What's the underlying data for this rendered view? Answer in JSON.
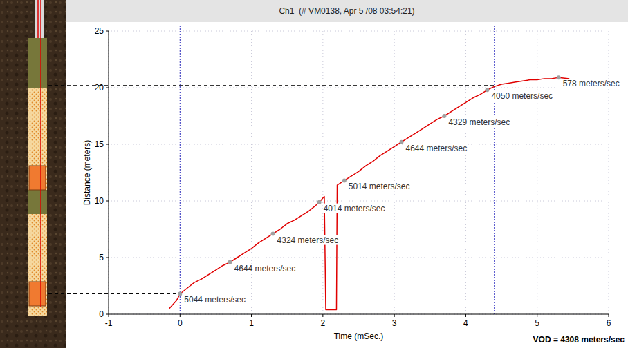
{
  "chart_data": {
    "type": "line",
    "title": "Ch1  (# VM0138, Apr 5 /08 03:54:21)",
    "x_label": "Time (mSec.)",
    "y_label": "Distance (meters)",
    "footer": "VOD = 4308 meters/sec",
    "color": "#e00000",
    "grid": true,
    "xlim": [
      -1,
      6
    ],
    "xticks": [
      -1,
      0,
      1,
      2,
      3,
      4,
      5,
      6
    ],
    "ylim": [
      0,
      25
    ],
    "yticks": [
      0,
      5,
      10,
      15,
      20,
      25
    ],
    "x": [
      -0.15,
      -0.05,
      0,
      0.1,
      0.2,
      0.3,
      0.4,
      0.5,
      0.6,
      0.7,
      0.8,
      0.9,
      1.0,
      1.1,
      1.2,
      1.3,
      1.4,
      1.5,
      1.6,
      1.7,
      1.8,
      1.9,
      1.95,
      2.02,
      2.04,
      2.19,
      2.2,
      2.3,
      2.4,
      2.5,
      2.6,
      2.7,
      2.8,
      2.9,
      3.0,
      3.1,
      3.2,
      3.3,
      3.4,
      3.5,
      3.6,
      3.7,
      3.8,
      3.9,
      4.0,
      4.1,
      4.2,
      4.3,
      4.4,
      4.5,
      4.6,
      4.7,
      4.8,
      4.9,
      5.0,
      5.1,
      5.2,
      5.3,
      5.45
    ],
    "values": [
      0.5,
      1.2,
      1.8,
      2.3,
      2.8,
      3.1,
      3.5,
      3.9,
      4.3,
      4.6,
      5.0,
      5.4,
      5.8,
      6.3,
      6.7,
      7.1,
      7.5,
      8.0,
      8.3,
      8.7,
      9.1,
      9.6,
      9.9,
      10.4,
      0.4,
      0.4,
      11.4,
      11.8,
      12.2,
      12.6,
      13.1,
      13.5,
      14.0,
      14.4,
      14.8,
      15.2,
      15.6,
      16.0,
      16.4,
      16.8,
      17.2,
      17.5,
      17.9,
      18.3,
      18.7,
      19.1,
      19.4,
      19.8,
      20.1,
      20.3,
      20.4,
      20.5,
      20.6,
      20.7,
      20.7,
      20.8,
      20.8,
      20.9,
      20.8
    ],
    "annotations": [
      {
        "text": "5044 meters/sec",
        "x": 0,
        "y": 1.8
      },
      {
        "text": "4644 meters/sec",
        "x": 0.7,
        "y": 4.6
      },
      {
        "text": "4324 meters/sec",
        "x": 1.3,
        "y": 7.1
      },
      {
        "text": "4014 meters/sec",
        "x": 1.95,
        "y": 9.9
      },
      {
        "text": "5014 meters/sec",
        "x": 2.3,
        "y": 11.8
      },
      {
        "text": "4644 meters/sec",
        "x": 3.1,
        "y": 15.2
      },
      {
        "text": "4329 meters/sec",
        "x": 3.7,
        "y": 17.5
      },
      {
        "text": "4050 meters/sec",
        "x": 4.3,
        "y": 19.8
      },
      {
        "text": "578 meters/sec",
        "x": 5.3,
        "y": 20.9
      }
    ],
    "reference_points": [
      {
        "x": 0,
        "y": 1.8
      },
      {
        "x": 4.4,
        "y": 20.2
      }
    ]
  }
}
